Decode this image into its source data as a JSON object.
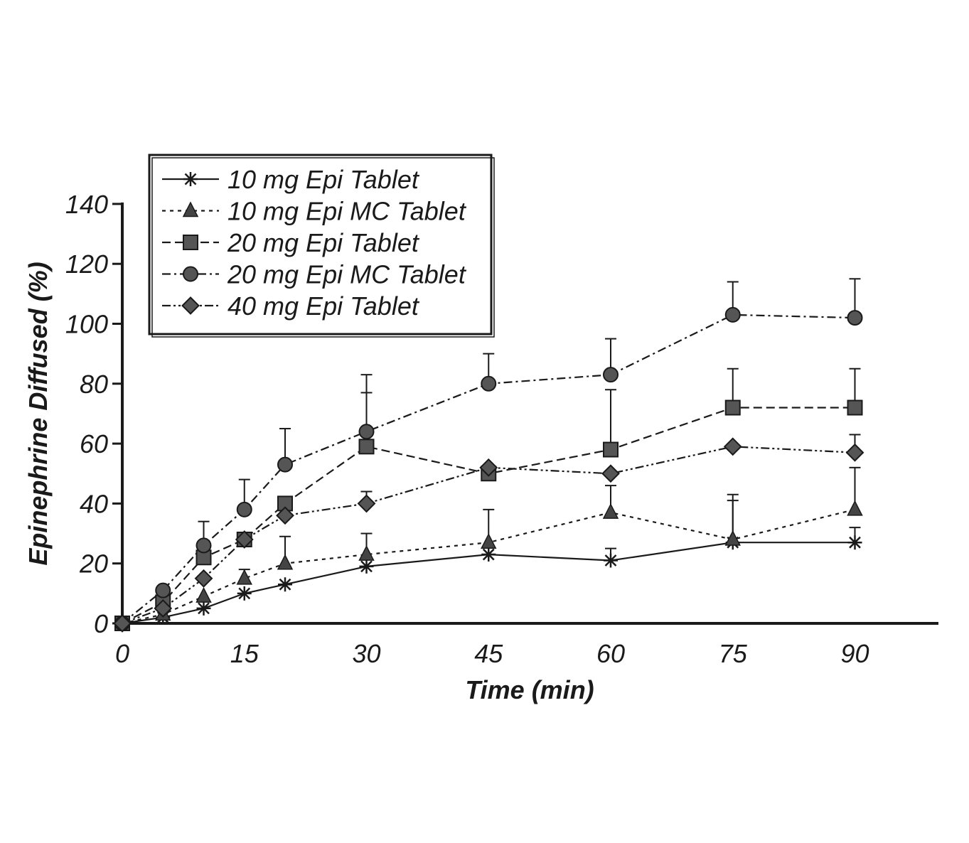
{
  "chart_data": {
    "type": "line",
    "xlabel": "Time (min)",
    "ylabel": "Epinephrine Diffused (%)",
    "xlim": [
      0,
      100
    ],
    "ylim": [
      0,
      140
    ],
    "xticks": [
      0,
      15,
      30,
      45,
      60,
      75,
      90
    ],
    "yticks": [
      0,
      20,
      40,
      60,
      80,
      100,
      120,
      140
    ],
    "legend_position": "top-left",
    "grid": false,
    "x": [
      0,
      5,
      10,
      15,
      20,
      30,
      45,
      60,
      75,
      90
    ],
    "series": [
      {
        "name": "10 mg Epi Tablet",
        "marker": "star",
        "dash": "solid",
        "values": [
          0,
          2,
          5,
          10,
          13,
          19,
          23,
          21,
          27,
          27
        ],
        "error": [
          0,
          0,
          0,
          0,
          0,
          0,
          0,
          4,
          16,
          5
        ]
      },
      {
        "name": "10 mg Epi MC Tablet",
        "marker": "triangle",
        "dash": "dotted",
        "values": [
          0,
          3,
          9,
          15,
          20,
          23,
          27,
          37,
          28,
          38
        ],
        "error": [
          0,
          0,
          0,
          3,
          9,
          7,
          11,
          9,
          13,
          14
        ]
      },
      {
        "name": "20 mg Epi Tablet",
        "marker": "square",
        "dash": "dashed",
        "values": [
          0,
          7,
          22,
          28,
          40,
          59,
          50,
          58,
          72,
          72
        ],
        "error": [
          0,
          0,
          0,
          0,
          0,
          18,
          0,
          20,
          13,
          13
        ]
      },
      {
        "name": "20 mg Epi MC Tablet",
        "marker": "circle",
        "dash": "dashdot",
        "values": [
          0,
          11,
          26,
          38,
          53,
          64,
          80,
          83,
          103,
          102
        ],
        "error": [
          0,
          0,
          8,
          10,
          12,
          19,
          10,
          12,
          11,
          13
        ]
      },
      {
        "name": "40 mg Epi Tablet",
        "marker": "diamond",
        "dash": "dashdotdot",
        "values": [
          0,
          5,
          15,
          28,
          36,
          40,
          52,
          50,
          59,
          57
        ],
        "error": [
          0,
          0,
          0,
          0,
          0,
          4,
          0,
          0,
          0,
          6
        ]
      }
    ]
  }
}
